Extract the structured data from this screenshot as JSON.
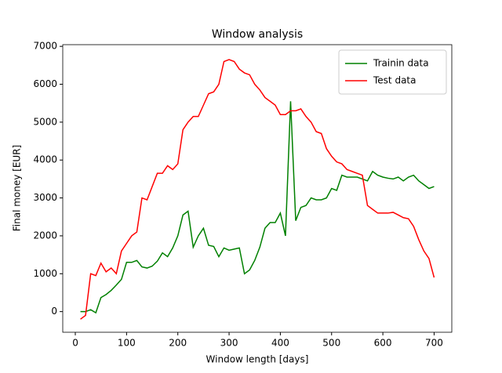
{
  "chart_data": {
    "type": "line",
    "title": "Window analysis",
    "x_label": "Window length [days]",
    "y_label": "Final money [EUR]",
    "x": [
      10,
      20,
      30,
      40,
      50,
      60,
      70,
      80,
      90,
      100,
      110,
      120,
      130,
      140,
      150,
      160,
      170,
      180,
      190,
      200,
      210,
      220,
      230,
      240,
      250,
      260,
      270,
      280,
      290,
      300,
      310,
      320,
      330,
      340,
      350,
      360,
      370,
      380,
      390,
      400,
      410,
      420,
      430,
      440,
      450,
      460,
      470,
      480,
      490,
      500,
      510,
      520,
      530,
      540,
      550,
      560,
      570,
      580,
      590,
      600,
      610,
      620,
      630,
      640,
      650,
      660,
      670,
      680,
      690,
      700
    ],
    "series": [
      {
        "name": "Trainin data",
        "color": "#008000",
        "values": [
          0,
          0,
          50,
          -30,
          370,
          450,
          560,
          700,
          850,
          1300,
          1300,
          1350,
          1180,
          1150,
          1200,
          1330,
          1550,
          1450,
          1680,
          2000,
          2550,
          2650,
          1700,
          2000,
          2200,
          1750,
          1720,
          1450,
          1680,
          1620,
          1650,
          1680,
          1000,
          1100,
          1350,
          1700,
          2200,
          2350,
          2350,
          2600,
          2000,
          5550,
          2400,
          2750,
          2800,
          3000,
          2950,
          2950,
          3000,
          3250,
          3200,
          3600,
          3550,
          3550,
          3550,
          3500,
          3450,
          3700,
          3600,
          3550,
          3520,
          3500,
          3550,
          3450,
          3550,
          3600,
          3450,
          3350,
          3250,
          3300
        ]
      },
      {
        "name": "Test data",
        "color": "#ff0000",
        "values": [
          -200,
          -100,
          1000,
          950,
          1280,
          1050,
          1150,
          1000,
          1600,
          1800,
          2000,
          2100,
          3000,
          2950,
          3300,
          3650,
          3650,
          3850,
          3750,
          3900,
          4800,
          5000,
          5150,
          5150,
          5450,
          5750,
          5800,
          6000,
          6600,
          6650,
          6600,
          6400,
          6300,
          6250,
          6000,
          5850,
          5650,
          5550,
          5450,
          5200,
          5200,
          5300,
          5300,
          5350,
          5150,
          5000,
          4750,
          4700,
          4300,
          4100,
          3950,
          3900,
          3750,
          3700,
          3650,
          3600,
          2800,
          2700,
          2600,
          2600,
          2600,
          2620,
          2550,
          2480,
          2450,
          2250,
          1900,
          1600,
          1400,
          900
        ]
      }
    ],
    "xlim": [
      -24.5,
      734.5
    ],
    "ylim": [
      -545,
      7045
    ],
    "xticks": [
      0,
      100,
      200,
      300,
      400,
      500,
      600,
      700
    ],
    "yticks": [
      0,
      1000,
      2000,
      3000,
      4000,
      5000,
      6000,
      7000
    ],
    "legend": "upper right",
    "grid": false
  }
}
